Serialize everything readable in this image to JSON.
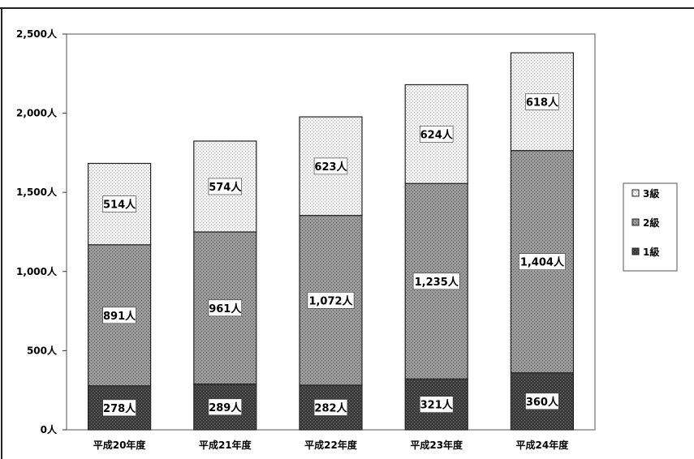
{
  "chart_data": {
    "type": "bar",
    "stacked": true,
    "categories": [
      "平成20年度",
      "平成21年度",
      "平成22年度",
      "平成23年度",
      "平成24年度"
    ],
    "series": [
      {
        "name": "1級",
        "values": [
          278,
          289,
          282,
          321,
          360
        ],
        "labels": [
          "278人",
          "289人",
          "282人",
          "321人",
          "360人"
        ],
        "color": "#4a4a4a"
      },
      {
        "name": "2級",
        "values": [
          891,
          961,
          1072,
          1235,
          1404
        ],
        "labels": [
          "891人",
          "961人",
          "1,072人",
          "1,235人",
          "1,404人"
        ],
        "color": "#8c8c8c"
      },
      {
        "name": "3級",
        "values": [
          514,
          574,
          623,
          624,
          618
        ],
        "labels": [
          "514人",
          "574人",
          "623人",
          "624人",
          "618人"
        ],
        "color": "#e6e6e6"
      }
    ],
    "ylim": [
      0,
      2500
    ],
    "yticks": [
      0,
      500,
      1000,
      1500,
      2000,
      2500
    ],
    "ytick_labels": [
      "0人",
      "500人",
      "1,000人",
      "1,500人",
      "2,000人",
      "2,500人"
    ],
    "title": "",
    "xlabel": "",
    "ylabel": "",
    "grid": false,
    "legend_position": "right",
    "legend_order": [
      "3級",
      "2級",
      "1級"
    ]
  }
}
